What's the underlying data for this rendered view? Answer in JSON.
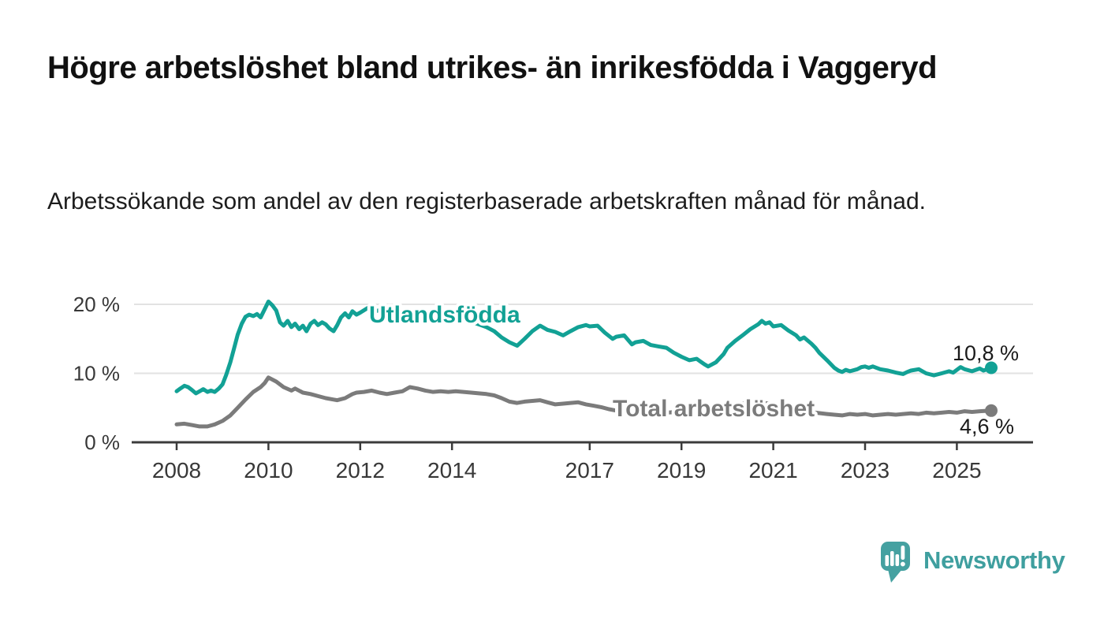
{
  "header": {
    "title": "Högre arbetslöshet bland utrikes- än inrikesfödda i Vaggeryd",
    "subtitle": "Arbetssökande som andel av den registerbaserade arbetskraften månad för månad."
  },
  "chart_data": {
    "type": "line",
    "title": "Högre arbetslöshet bland utrikes- än inrikesfödda i Vaggeryd",
    "subtitle": "Arbetssökande som andel av den registerbaserade arbetskraften månad för månad.",
    "xlabel": "",
    "ylabel": "",
    "x_ticks": [
      2008,
      2010,
      2012,
      2014,
      2017,
      2019,
      2021,
      2023,
      2025
    ],
    "y_ticks": [
      {
        "value": 0,
        "label": "0 %"
      },
      {
        "value": 10,
        "label": "10 %"
      },
      {
        "value": 20,
        "label": "20 %"
      }
    ],
    "ylim": [
      0,
      22
    ],
    "xlim": [
      2007.1,
      2026.6
    ],
    "grid": "horizontal",
    "legend_position": "inline-labels",
    "series": [
      {
        "name": "Utlandsfödda",
        "color": "#12a195",
        "end_label": "10,8 %",
        "end_value": 10.8,
        "points": [
          [
            2008.0,
            7.4
          ],
          [
            2008.08,
            7.8
          ],
          [
            2008.17,
            8.2
          ],
          [
            2008.25,
            8.0
          ],
          [
            2008.33,
            7.6
          ],
          [
            2008.42,
            7.1
          ],
          [
            2008.5,
            7.4
          ],
          [
            2008.58,
            7.7
          ],
          [
            2008.67,
            7.3
          ],
          [
            2008.75,
            7.5
          ],
          [
            2008.83,
            7.3
          ],
          [
            2008.92,
            7.8
          ],
          [
            2009.0,
            8.4
          ],
          [
            2009.08,
            9.8
          ],
          [
            2009.17,
            11.6
          ],
          [
            2009.25,
            13.6
          ],
          [
            2009.33,
            15.6
          ],
          [
            2009.42,
            17.2
          ],
          [
            2009.5,
            18.2
          ],
          [
            2009.58,
            18.5
          ],
          [
            2009.67,
            18.3
          ],
          [
            2009.75,
            18.6
          ],
          [
            2009.83,
            18.1
          ],
          [
            2009.92,
            19.3
          ],
          [
            2010.0,
            20.4
          ],
          [
            2010.08,
            19.9
          ],
          [
            2010.17,
            19.1
          ],
          [
            2010.25,
            17.4
          ],
          [
            2010.33,
            16.9
          ],
          [
            2010.42,
            17.6
          ],
          [
            2010.5,
            16.7
          ],
          [
            2010.58,
            17.2
          ],
          [
            2010.67,
            16.4
          ],
          [
            2010.75,
            16.9
          ],
          [
            2010.83,
            16.1
          ],
          [
            2010.92,
            17.2
          ],
          [
            2011.0,
            17.6
          ],
          [
            2011.08,
            17.0
          ],
          [
            2011.17,
            17.4
          ],
          [
            2011.25,
            17.1
          ],
          [
            2011.33,
            16.5
          ],
          [
            2011.42,
            16.1
          ],
          [
            2011.5,
            17.0
          ],
          [
            2011.58,
            18.1
          ],
          [
            2011.67,
            18.7
          ],
          [
            2011.75,
            18.1
          ],
          [
            2011.83,
            19.0
          ],
          [
            2011.92,
            18.5
          ],
          [
            2012.0,
            18.8
          ],
          [
            2012.17,
            19.5
          ],
          [
            2012.33,
            19.0
          ],
          [
            2012.5,
            19.3
          ],
          [
            2012.67,
            18.9
          ],
          [
            2012.83,
            19.1
          ],
          [
            2013.0,
            18.8
          ],
          [
            2013.25,
            19.0
          ],
          [
            2013.5,
            18.7
          ],
          [
            2013.75,
            18.4
          ],
          [
            2014.0,
            18.1
          ],
          [
            2014.25,
            17.8
          ],
          [
            2014.5,
            17.3
          ],
          [
            2014.75,
            16.7
          ],
          [
            2014.92,
            16.1
          ],
          [
            2015.08,
            15.2
          ],
          [
            2015.25,
            14.5
          ],
          [
            2015.42,
            14.0
          ],
          [
            2015.58,
            15.0
          ],
          [
            2015.75,
            16.1
          ],
          [
            2015.92,
            16.9
          ],
          [
            2016.08,
            16.3
          ],
          [
            2016.25,
            16.0
          ],
          [
            2016.42,
            15.5
          ],
          [
            2016.58,
            16.1
          ],
          [
            2016.75,
            16.7
          ],
          [
            2016.92,
            17.0
          ],
          [
            2017.0,
            16.8
          ],
          [
            2017.17,
            16.9
          ],
          [
            2017.33,
            15.9
          ],
          [
            2017.5,
            15.0
          ],
          [
            2017.58,
            15.3
          ],
          [
            2017.75,
            15.5
          ],
          [
            2017.92,
            14.2
          ],
          [
            2018.0,
            14.5
          ],
          [
            2018.17,
            14.7
          ],
          [
            2018.33,
            14.1
          ],
          [
            2018.5,
            13.9
          ],
          [
            2018.67,
            13.7
          ],
          [
            2018.83,
            13.0
          ],
          [
            2019.0,
            12.4
          ],
          [
            2019.17,
            11.9
          ],
          [
            2019.33,
            12.1
          ],
          [
            2019.5,
            11.3
          ],
          [
            2019.58,
            11.0
          ],
          [
            2019.75,
            11.6
          ],
          [
            2019.92,
            12.8
          ],
          [
            2020.0,
            13.7
          ],
          [
            2020.17,
            14.7
          ],
          [
            2020.33,
            15.5
          ],
          [
            2020.5,
            16.4
          ],
          [
            2020.67,
            17.1
          ],
          [
            2020.75,
            17.6
          ],
          [
            2020.83,
            17.2
          ],
          [
            2020.92,
            17.4
          ],
          [
            2021.0,
            16.8
          ],
          [
            2021.17,
            17.0
          ],
          [
            2021.33,
            16.2
          ],
          [
            2021.5,
            15.5
          ],
          [
            2021.58,
            14.9
          ],
          [
            2021.67,
            15.2
          ],
          [
            2021.83,
            14.3
          ],
          [
            2021.92,
            13.7
          ],
          [
            2022.0,
            13.0
          ],
          [
            2022.17,
            11.9
          ],
          [
            2022.33,
            10.8
          ],
          [
            2022.42,
            10.4
          ],
          [
            2022.5,
            10.2
          ],
          [
            2022.58,
            10.5
          ],
          [
            2022.67,
            10.3
          ],
          [
            2022.83,
            10.6
          ],
          [
            2022.92,
            10.9
          ],
          [
            2023.0,
            11.0
          ],
          [
            2023.08,
            10.8
          ],
          [
            2023.17,
            11.0
          ],
          [
            2023.33,
            10.6
          ],
          [
            2023.5,
            10.4
          ],
          [
            2023.67,
            10.1
          ],
          [
            2023.83,
            9.9
          ],
          [
            2023.92,
            10.2
          ],
          [
            2024.0,
            10.4
          ],
          [
            2024.17,
            10.6
          ],
          [
            2024.33,
            10.0
          ],
          [
            2024.5,
            9.7
          ],
          [
            2024.67,
            10.0
          ],
          [
            2024.83,
            10.3
          ],
          [
            2024.92,
            10.1
          ],
          [
            2025.0,
            10.5
          ],
          [
            2025.08,
            10.9
          ],
          [
            2025.17,
            10.6
          ],
          [
            2025.33,
            10.3
          ],
          [
            2025.5,
            10.7
          ],
          [
            2025.58,
            10.4
          ],
          [
            2025.75,
            10.8
          ]
        ]
      },
      {
        "name": "Total arbetslöshet",
        "color": "#7b7b7b",
        "end_label": "4,6 %",
        "end_value": 4.6,
        "points": [
          [
            2008.0,
            2.6
          ],
          [
            2008.17,
            2.7
          ],
          [
            2008.33,
            2.5
          ],
          [
            2008.5,
            2.3
          ],
          [
            2008.67,
            2.3
          ],
          [
            2008.83,
            2.6
          ],
          [
            2009.0,
            3.1
          ],
          [
            2009.17,
            3.9
          ],
          [
            2009.33,
            5.0
          ],
          [
            2009.5,
            6.2
          ],
          [
            2009.67,
            7.3
          ],
          [
            2009.83,
            8.0
          ],
          [
            2009.92,
            8.6
          ],
          [
            2010.0,
            9.4
          ],
          [
            2010.17,
            8.8
          ],
          [
            2010.33,
            8.0
          ],
          [
            2010.5,
            7.5
          ],
          [
            2010.58,
            7.8
          ],
          [
            2010.75,
            7.2
          ],
          [
            2010.92,
            7.0
          ],
          [
            2011.08,
            6.7
          ],
          [
            2011.25,
            6.4
          ],
          [
            2011.42,
            6.2
          ],
          [
            2011.5,
            6.1
          ],
          [
            2011.67,
            6.4
          ],
          [
            2011.83,
            7.0
          ],
          [
            2011.92,
            7.2
          ],
          [
            2012.08,
            7.3
          ],
          [
            2012.25,
            7.5
          ],
          [
            2012.42,
            7.2
          ],
          [
            2012.58,
            7.0
          ],
          [
            2012.75,
            7.2
          ],
          [
            2012.92,
            7.4
          ],
          [
            2013.08,
            8.0
          ],
          [
            2013.25,
            7.8
          ],
          [
            2013.42,
            7.5
          ],
          [
            2013.58,
            7.3
          ],
          [
            2013.75,
            7.4
          ],
          [
            2013.92,
            7.3
          ],
          [
            2014.08,
            7.4
          ],
          [
            2014.25,
            7.3
          ],
          [
            2014.42,
            7.2
          ],
          [
            2014.58,
            7.1
          ],
          [
            2014.75,
            7.0
          ],
          [
            2014.92,
            6.8
          ],
          [
            2015.08,
            6.4
          ],
          [
            2015.25,
            5.9
          ],
          [
            2015.42,
            5.7
          ],
          [
            2015.58,
            5.9
          ],
          [
            2015.75,
            6.0
          ],
          [
            2015.92,
            6.1
          ],
          [
            2016.08,
            5.8
          ],
          [
            2016.25,
            5.5
          ],
          [
            2016.42,
            5.6
          ],
          [
            2016.58,
            5.7
          ],
          [
            2016.75,
            5.8
          ],
          [
            2016.92,
            5.5
          ],
          [
            2017.08,
            5.3
          ],
          [
            2017.25,
            5.1
          ],
          [
            2017.42,
            4.8
          ],
          [
            2017.58,
            4.6
          ],
          [
            2017.75,
            4.5
          ],
          [
            2017.92,
            4.3
          ],
          [
            2018.17,
            4.0
          ],
          [
            2018.42,
            4.1
          ],
          [
            2018.67,
            4.3
          ],
          [
            2018.92,
            4.4
          ],
          [
            2019.17,
            4.6
          ],
          [
            2019.42,
            4.7
          ],
          [
            2019.67,
            4.9
          ],
          [
            2019.92,
            5.2
          ],
          [
            2020.17,
            5.5
          ],
          [
            2020.42,
            5.7
          ],
          [
            2020.67,
            5.8
          ],
          [
            2020.92,
            5.6
          ],
          [
            2021.17,
            5.2
          ],
          [
            2021.42,
            4.9
          ],
          [
            2021.67,
            4.6
          ],
          [
            2021.92,
            4.3
          ],
          [
            2022.17,
            4.1
          ],
          [
            2022.33,
            4.0
          ],
          [
            2022.5,
            3.9
          ],
          [
            2022.67,
            4.1
          ],
          [
            2022.83,
            4.0
          ],
          [
            2023.0,
            4.1
          ],
          [
            2023.17,
            3.9
          ],
          [
            2023.33,
            4.0
          ],
          [
            2023.5,
            4.1
          ],
          [
            2023.67,
            4.0
          ],
          [
            2023.83,
            4.1
          ],
          [
            2024.0,
            4.2
          ],
          [
            2024.17,
            4.1
          ],
          [
            2024.33,
            4.3
          ],
          [
            2024.5,
            4.2
          ],
          [
            2024.67,
            4.3
          ],
          [
            2024.83,
            4.4
          ],
          [
            2025.0,
            4.3
          ],
          [
            2025.17,
            4.5
          ],
          [
            2025.33,
            4.4
          ],
          [
            2025.5,
            4.5
          ],
          [
            2025.75,
            4.6
          ]
        ]
      }
    ]
  },
  "branding": {
    "logo_text": "Newsworthy",
    "logo_icon": "newsworthy-bars-speech-bubble-icon",
    "brand_color": "#3f9f9f"
  }
}
